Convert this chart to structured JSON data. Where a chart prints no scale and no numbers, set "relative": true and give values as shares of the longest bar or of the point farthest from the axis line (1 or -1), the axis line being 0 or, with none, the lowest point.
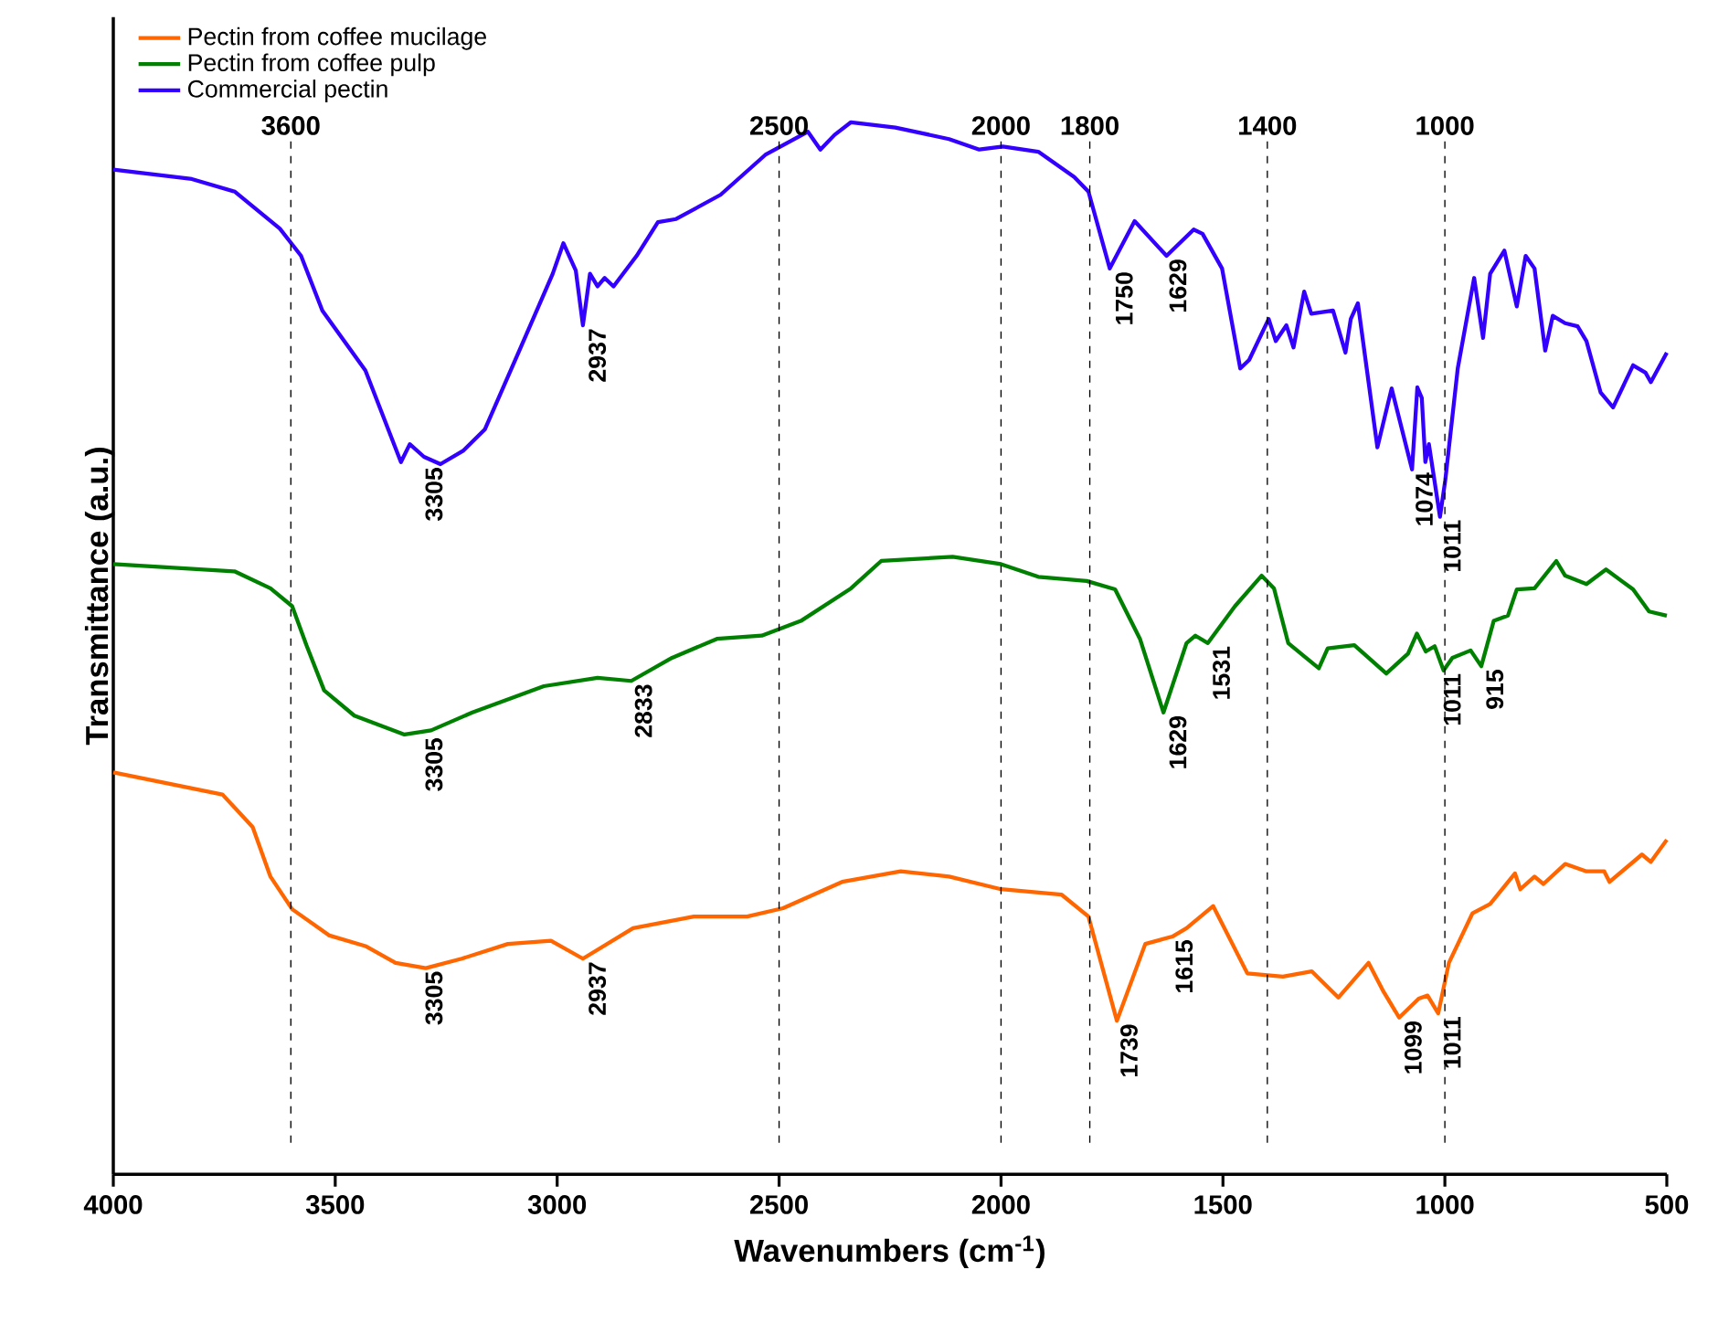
{
  "chart_data": {
    "type": "line",
    "relative": true,
    "xlabel": "Wavenumbers (cm$^{-1}$)",
    "ylabel": "Transmittance (a.u.)",
    "xlim": [
      4000,
      500
    ],
    "xticks": [
      4000,
      3500,
      3000,
      2500,
      2000,
      1500,
      1000,
      500
    ],
    "legend": "top left",
    "line_style": "solid",
    "marker": "none",
    "series": [
      {
        "name": "Pectin from coffee mucilage",
        "color": "#ff6600",
        "x": [
          4000,
          3754,
          3686,
          3646,
          3597,
          3513,
          3432,
          3364,
          3296,
          3215,
          3111,
          3014,
          2942,
          2829,
          2692,
          2572,
          2491,
          2358,
          2226,
          2117,
          2000,
          1864,
          1803,
          1739,
          1675,
          1614,
          1582,
          1522,
          1445,
          1365,
          1300,
          1240,
          1172,
          1140,
          1103,
          1059,
          1039,
          1015,
          991,
          938,
          898,
          842,
          830,
          798,
          778,
          729,
          681,
          641,
          629,
          556,
          536,
          500
        ],
        "values": [
          0.382,
          0.361,
          0.33,
          0.283,
          0.252,
          0.227,
          0.217,
          0.201,
          0.196,
          0.205,
          0.219,
          0.222,
          0.205,
          0.234,
          0.245,
          0.245,
          0.253,
          0.278,
          0.288,
          0.283,
          0.271,
          0.266,
          0.245,
          0.146,
          0.219,
          0.226,
          0.234,
          0.255,
          0.191,
          0.188,
          0.193,
          0.168,
          0.201,
          0.175,
          0.149,
          0.167,
          0.17,
          0.153,
          0.201,
          0.248,
          0.257,
          0.286,
          0.271,
          0.283,
          0.276,
          0.295,
          0.288,
          0.288,
          0.278,
          0.304,
          0.297,
          0.318
        ]
      },
      {
        "name": "Pectin from coffee pulp",
        "color": "#008000",
        "x": [
          4000,
          3726,
          3646,
          3597,
          3565,
          3525,
          3457,
          3344,
          3284,
          3191,
          3030,
          2909,
          2833,
          2741,
          2640,
          2539,
          2451,
          2338,
          2270,
          2109,
          2000,
          1916,
          1807,
          1743,
          1687,
          1634,
          1582,
          1562,
          1534,
          1473,
          1413,
          1385,
          1353,
          1313,
          1284,
          1264,
          1204,
          1132,
          1083,
          1063,
          1043,
          1023,
          1003,
          983,
          942,
          918,
          890,
          858,
          838,
          798,
          749,
          729,
          681,
          637,
          576,
          540,
          500
        ],
        "values": [
          0.58,
          0.573,
          0.557,
          0.54,
          0.503,
          0.46,
          0.436,
          0.418,
          0.422,
          0.439,
          0.464,
          0.472,
          0.469,
          0.491,
          0.509,
          0.512,
          0.526,
          0.557,
          0.583,
          0.587,
          0.58,
          0.568,
          0.564,
          0.556,
          0.509,
          0.439,
          0.505,
          0.512,
          0.505,
          0.54,
          0.569,
          0.557,
          0.505,
          0.491,
          0.481,
          0.5,
          0.503,
          0.476,
          0.495,
          0.514,
          0.497,
          0.502,
          0.479,
          0.491,
          0.498,
          0.483,
          0.526,
          0.531,
          0.556,
          0.557,
          0.583,
          0.569,
          0.561,
          0.575,
          0.556,
          0.535,
          0.531
        ]
      },
      {
        "name": "Commercial pectin",
        "color": "#3300ff",
        "x": [
          4000,
          3823,
          3726,
          3625,
          3577,
          3529,
          3432,
          3352,
          3332,
          3300,
          3263,
          3211,
          3163,
          3082,
          3010,
          2986,
          2958,
          2942,
          2926,
          2909,
          2893,
          2873,
          2821,
          2773,
          2732,
          2632,
          2531,
          2435,
          2407,
          2375,
          2338,
          2238,
          2117,
          2049,
          1996,
          1916,
          1835,
          1803,
          1755,
          1699,
          1627,
          1566,
          1546,
          1502,
          1461,
          1441,
          1397,
          1381,
          1357,
          1341,
          1317,
          1301,
          1252,
          1224,
          1212,
          1196,
          1152,
          1120,
          1074,
          1062,
          1052,
          1044,
          1036,
          1011,
          999,
          971,
          934,
          914,
          898,
          866,
          838,
          818,
          798,
          774,
          757,
          729,
          701,
          681,
          649,
          621,
          576,
          548,
          536,
          500
        ],
        "values": [
          0.955,
          0.946,
          0.934,
          0.899,
          0.873,
          0.821,
          0.764,
          0.677,
          0.694,
          0.682,
          0.675,
          0.688,
          0.708,
          0.786,
          0.856,
          0.885,
          0.859,
          0.807,
          0.856,
          0.844,
          0.852,
          0.844,
          0.873,
          0.905,
          0.908,
          0.931,
          0.969,
          0.991,
          0.974,
          0.988,
          1.0,
          0.995,
          0.984,
          0.974,
          0.977,
          0.972,
          0.948,
          0.934,
          0.861,
          0.906,
          0.873,
          0.898,
          0.894,
          0.861,
          0.766,
          0.774,
          0.813,
          0.792,
          0.807,
          0.786,
          0.839,
          0.818,
          0.821,
          0.781,
          0.813,
          0.828,
          0.691,
          0.747,
          0.67,
          0.748,
          0.738,
          0.677,
          0.694,
          0.625,
          0.66,
          0.766,
          0.852,
          0.795,
          0.856,
          0.878,
          0.825,
          0.873,
          0.861,
          0.783,
          0.816,
          0.809,
          0.806,
          0.792,
          0.743,
          0.729,
          0.769,
          0.762,
          0.753,
          0.781
        ]
      }
    ],
    "ref_lines": [
      {
        "axis": "x",
        "value": 3600,
        "label": "3600",
        "line_style": "dashed"
      },
      {
        "axis": "x",
        "value": 2500,
        "label": "2500",
        "line_style": "dashed"
      },
      {
        "axis": "x",
        "value": 2000,
        "label": "2000",
        "line_style": "dashed"
      },
      {
        "axis": "x",
        "value": 1800,
        "label": "1800",
        "line_style": "dashed"
      },
      {
        "axis": "x",
        "value": 1400,
        "label": "1400",
        "line_style": "dashed"
      },
      {
        "axis": "x",
        "value": 1000,
        "label": "1000",
        "line_style": "dashed"
      }
    ],
    "annotations": [
      {
        "text": "3305",
        "x": 3305,
        "y": 0.675
      },
      {
        "text": "2937",
        "x": 2937,
        "y": 0.807
      },
      {
        "text": "1750",
        "x": 1750,
        "y": 0.861
      },
      {
        "text": "1629",
        "x": 1629,
        "y": 0.873
      },
      {
        "text": "1074",
        "x": 1074,
        "y": 0.67
      },
      {
        "text": "1011",
        "x": 1011,
        "y": 0.625
      },
      {
        "text": "3305",
        "x": 3305,
        "y": 0.418
      },
      {
        "text": "2833",
        "x": 2833,
        "y": 0.469
      },
      {
        "text": "1629",
        "x": 1629,
        "y": 0.439
      },
      {
        "text": "1531",
        "x": 1531,
        "y": 0.505
      },
      {
        "text": "1011",
        "x": 1011,
        "y": 0.479
      },
      {
        "text": "915",
        "x": 915,
        "y": 0.483
      },
      {
        "text": "3305",
        "x": 3305,
        "y": 0.196
      },
      {
        "text": "2937",
        "x": 2937,
        "y": 0.205
      },
      {
        "text": "1739",
        "x": 1739,
        "y": 0.146
      },
      {
        "text": "1615",
        "x": 1615,
        "y": 0.226
      },
      {
        "text": "1099",
        "x": 1099,
        "y": 0.149
      },
      {
        "text": "1011",
        "x": 1011,
        "y": 0.153
      }
    ]
  }
}
